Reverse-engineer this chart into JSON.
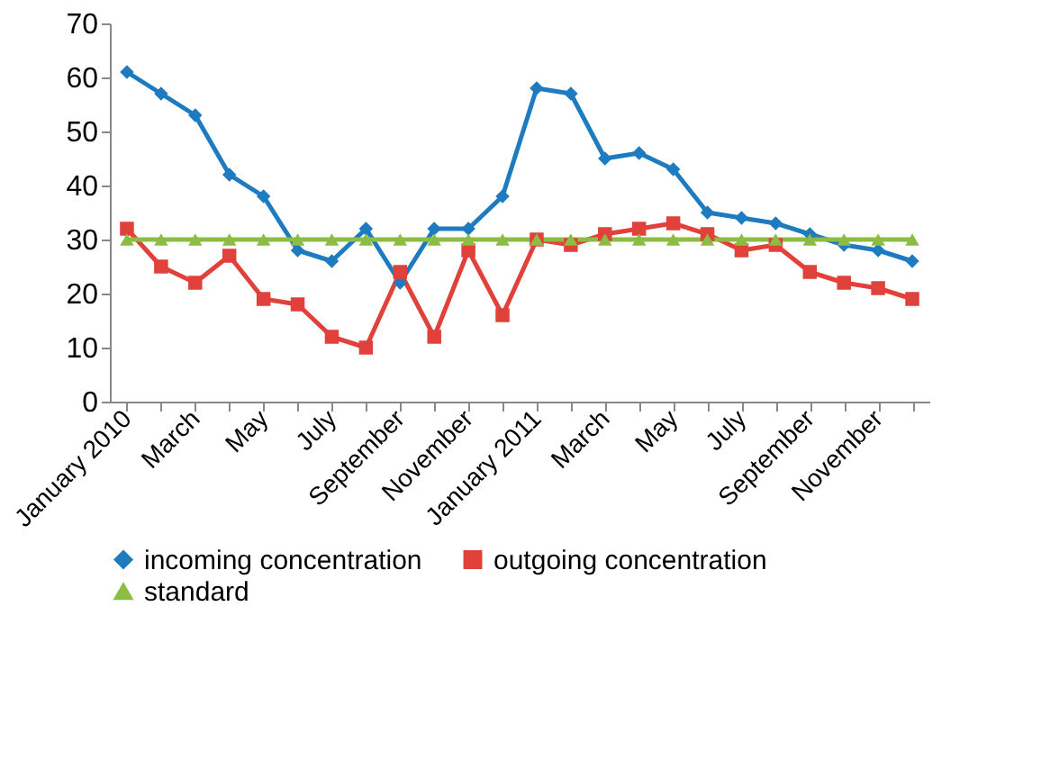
{
  "chart_data": {
    "type": "line",
    "categories": [
      "January 2010",
      null,
      "March",
      null,
      "May",
      null,
      "July",
      null,
      "September",
      null,
      "November",
      null,
      "January 2011",
      null,
      "March",
      null,
      "May",
      null,
      "July",
      null,
      "September",
      null,
      "November",
      null
    ],
    "series": [
      {
        "name": "incoming concentration",
        "color": "#1f7bbf",
        "marker": "diamond",
        "values": [
          61,
          57,
          53,
          42,
          38,
          28,
          26,
          32,
          22,
          32,
          32,
          38,
          58,
          57,
          45,
          46,
          43,
          35,
          34,
          33,
          31,
          29,
          28,
          26
        ]
      },
      {
        "name": "outgoing concentration",
        "color": "#e0413a",
        "marker": "square",
        "values": [
          32,
          25,
          22,
          27,
          19,
          18,
          12,
          10,
          24,
          12,
          28,
          16,
          30,
          29,
          31,
          32,
          33,
          31,
          28,
          29,
          24,
          22,
          21,
          19
        ]
      },
      {
        "name": "standard",
        "color": "#8cbc44",
        "marker": "triangle",
        "values": [
          30,
          30,
          30,
          30,
          30,
          30,
          30,
          30,
          30,
          30,
          30,
          30,
          30,
          30,
          30,
          30,
          30,
          30,
          30,
          30,
          30,
          30,
          30,
          30
        ]
      }
    ],
    "ylim": [
      0,
      70
    ],
    "yticks": [
      0,
      10,
      20,
      30,
      40,
      50,
      60,
      70
    ],
    "grid": false,
    "legend": "bottom",
    "line_style": "solid"
  }
}
